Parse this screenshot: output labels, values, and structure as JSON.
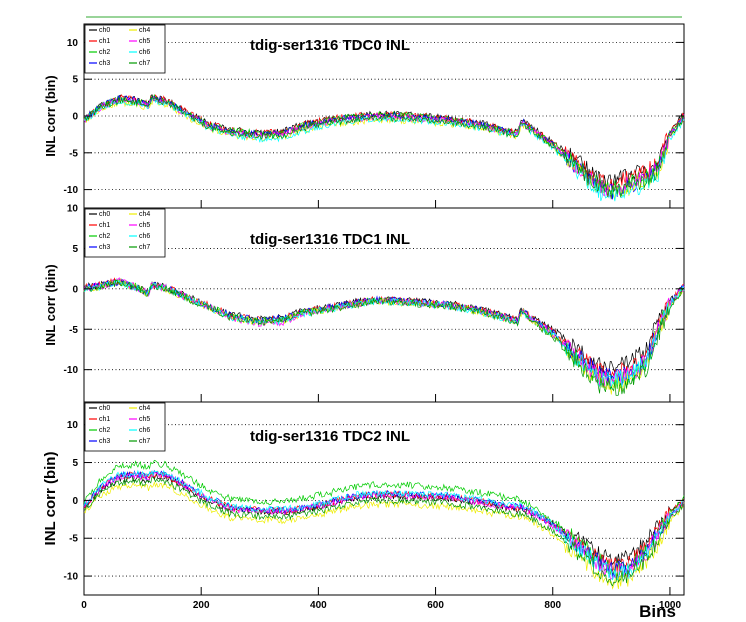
{
  "chart_data": [
    {
      "type": "line",
      "title": "tdig-ser1316 TDC0 INL",
      "ylabel": "INL corr (bin)",
      "xlabel": "",
      "xlim": [
        0,
        1024
      ],
      "ylim": [
        -12.5,
        12.5
      ],
      "yticks": [
        -10,
        -5,
        0,
        5,
        10
      ],
      "xticks": [
        0,
        200,
        400,
        600,
        800,
        1000
      ],
      "grid": "y-dotted",
      "legend": "top-left",
      "legend_entries": [
        "ch0",
        "ch1",
        "ch2",
        "ch3",
        "ch4",
        "ch5",
        "ch6",
        "ch7"
      ],
      "x": [
        0,
        30,
        60,
        90,
        110,
        115,
        140,
        170,
        210,
        250,
        300,
        340,
        370,
        420,
        460,
        500,
        560,
        620,
        680,
        740,
        745,
        750,
        760,
        800,
        840,
        880,
        900,
        930,
        960,
        980,
        1000,
        1024
      ],
      "series": [
        {
          "name": "ch0",
          "color": "#000000",
          "values": [
            -0.5,
            1.5,
            2.5,
            2.2,
            1.6,
            2.6,
            2.2,
            0.8,
            -1.0,
            -1.9,
            -2.2,
            -2.1,
            -1.2,
            -0.4,
            0.0,
            0.3,
            0.1,
            -0.3,
            -1.0,
            -2.3,
            -0.8,
            -0.6,
            -1.3,
            -3.5,
            -6.0,
            -8.5,
            -9.0,
            -8.0,
            -7.3,
            -6.2,
            -2.0,
            0.3
          ]
        },
        {
          "name": "ch1",
          "color": "#ff0000",
          "values": [
            -0.5,
            1.5,
            2.5,
            2.2,
            1.6,
            2.6,
            2.2,
            0.8,
            -1.0,
            -1.9,
            -2.3,
            -2.2,
            -1.3,
            -0.4,
            0.0,
            0.3,
            0.1,
            -0.3,
            -1.1,
            -2.3,
            -0.8,
            -0.7,
            -1.4,
            -3.6,
            -6.3,
            -8.8,
            -9.4,
            -8.3,
            -7.5,
            -6.3,
            -2.0,
            0.2
          ]
        },
        {
          "name": "ch2",
          "color": "#00cc00",
          "values": [
            -0.5,
            1.4,
            2.4,
            2.1,
            1.5,
            2.5,
            2.1,
            0.7,
            -1.1,
            -2.0,
            -2.4,
            -2.3,
            -1.4,
            -0.5,
            -0.1,
            0.2,
            0.0,
            -0.4,
            -1.2,
            -2.4,
            -0.9,
            -0.8,
            -1.5,
            -3.8,
            -6.6,
            -9.4,
            -10.0,
            -9.2,
            -8.2,
            -6.9,
            -2.4,
            0.0
          ]
        },
        {
          "name": "ch3",
          "color": "#0000ff",
          "values": [
            -0.6,
            1.5,
            2.4,
            2.1,
            1.5,
            2.4,
            2.0,
            0.6,
            -1.2,
            -2.1,
            -2.5,
            -2.3,
            -1.4,
            -0.6,
            -0.2,
            0.1,
            -0.1,
            -0.5,
            -1.2,
            -2.5,
            -1.0,
            -0.9,
            -1.6,
            -3.9,
            -6.8,
            -9.6,
            -10.3,
            -9.5,
            -8.5,
            -7.1,
            -2.5,
            -0.1
          ]
        },
        {
          "name": "ch4",
          "color": "#eeee00",
          "values": [
            -0.8,
            1.0,
            1.8,
            1.6,
            1.1,
            2.0,
            1.6,
            0.2,
            -1.6,
            -2.6,
            -3.0,
            -2.9,
            -2.0,
            -1.2,
            -0.8,
            -0.5,
            -0.7,
            -1.0,
            -1.6,
            -2.8,
            -1.4,
            -1.3,
            -1.9,
            -4.2,
            -7.1,
            -9.9,
            -10.6,
            -9.9,
            -9.0,
            -7.6,
            -3.0,
            -0.5
          ]
        },
        {
          "name": "ch5",
          "color": "#ff00ff",
          "values": [
            -0.6,
            1.3,
            2.2,
            2.0,
            1.4,
            2.3,
            1.9,
            0.5,
            -1.3,
            -2.3,
            -2.7,
            -2.5,
            -1.6,
            -0.8,
            -0.4,
            -0.1,
            -0.3,
            -0.7,
            -1.4,
            -2.6,
            -1.1,
            -1.0,
            -1.7,
            -4.0,
            -6.9,
            -9.7,
            -10.3,
            -9.3,
            -8.4,
            -7.0,
            -2.6,
            -0.2
          ]
        },
        {
          "name": "ch6",
          "color": "#00ffff",
          "values": [
            -0.7,
            1.2,
            2.0,
            1.8,
            1.3,
            2.2,
            1.8,
            0.4,
            -1.5,
            -2.5,
            -3.2,
            -3.0,
            -2.1,
            -1.1,
            -0.7,
            -0.4,
            -0.5,
            -0.9,
            -1.6,
            -2.8,
            -1.3,
            -1.2,
            -1.9,
            -4.3,
            -7.3,
            -10.4,
            -11.0,
            -10.2,
            -9.2,
            -7.8,
            -3.2,
            -0.6
          ]
        },
        {
          "name": "ch7",
          "color": "#009900",
          "values": [
            -0.6,
            1.3,
            2.1,
            1.9,
            1.4,
            2.3,
            1.9,
            0.5,
            -1.4,
            -2.3,
            -2.7,
            -2.6,
            -1.7,
            -0.9,
            -0.5,
            -0.2,
            -0.4,
            -0.8,
            -1.5,
            -2.7,
            -1.2,
            -1.1,
            -1.8,
            -4.1,
            -7.0,
            -9.8,
            -10.4,
            -9.6,
            -8.7,
            -7.3,
            -2.8,
            -0.3
          ]
        }
      ]
    },
    {
      "type": "line",
      "title": "tdig-ser1316 TDC1 INL",
      "ylabel": "INL corr (bin)",
      "xlabel": "",
      "xlim": [
        0,
        1024
      ],
      "ylim": [
        -14,
        10
      ],
      "yticks": [
        -10,
        -5,
        0,
        5,
        10
      ],
      "xticks": [
        0,
        200,
        400,
        600,
        800,
        1000
      ],
      "grid": "y-dotted",
      "legend": "top-left",
      "legend_entries": [
        "ch0",
        "ch1",
        "ch2",
        "ch3",
        "ch4",
        "ch5",
        "ch6",
        "ch7"
      ],
      "x": [
        0,
        30,
        60,
        90,
        110,
        115,
        140,
        170,
        210,
        250,
        300,
        340,
        370,
        420,
        460,
        500,
        560,
        620,
        680,
        740,
        745,
        750,
        760,
        800,
        840,
        880,
        900,
        930,
        960,
        980,
        1000,
        1024
      ],
      "series": [
        {
          "name": "ch0",
          "color": "#000000",
          "values": [
            0.2,
            0.5,
            1.0,
            0.3,
            -0.5,
            0.6,
            0.2,
            -0.8,
            -2.0,
            -3.2,
            -3.8,
            -3.6,
            -2.8,
            -2.2,
            -1.7,
            -1.2,
            -1.5,
            -1.8,
            -2.6,
            -3.8,
            -2.7,
            -2.6,
            -3.4,
            -5.0,
            -7.5,
            -9.5,
            -9.8,
            -9.3,
            -7.5,
            -4.0,
            -1.5,
            0.4
          ]
        },
        {
          "name": "ch1",
          "color": "#ff0000",
          "values": [
            0.2,
            0.5,
            1.0,
            0.3,
            -0.5,
            0.6,
            0.2,
            -0.8,
            -2.0,
            -3.3,
            -3.9,
            -3.7,
            -2.9,
            -2.3,
            -1.8,
            -1.3,
            -1.6,
            -1.9,
            -2.7,
            -3.9,
            -2.8,
            -2.7,
            -3.5,
            -5.3,
            -8.0,
            -10.3,
            -10.6,
            -10.0,
            -8.3,
            -4.6,
            -1.7,
            0.3
          ]
        },
        {
          "name": "ch2",
          "color": "#00cc00",
          "values": [
            0.1,
            0.4,
            0.9,
            0.2,
            -0.6,
            0.5,
            0.1,
            -0.9,
            -2.1,
            -3.4,
            -4.0,
            -3.8,
            -3.0,
            -2.4,
            -1.9,
            -1.4,
            -1.7,
            -2.0,
            -2.8,
            -4.0,
            -2.9,
            -2.8,
            -3.6,
            -5.6,
            -8.6,
            -11.2,
            -11.6,
            -11.0,
            -9.0,
            -5.0,
            -1.9,
            0.2
          ]
        },
        {
          "name": "ch3",
          "color": "#0000ff",
          "values": [
            0.1,
            0.4,
            0.9,
            0.2,
            -0.6,
            0.5,
            0.1,
            -0.9,
            -2.1,
            -3.3,
            -3.9,
            -3.7,
            -2.9,
            -2.3,
            -1.8,
            -1.3,
            -1.6,
            -1.9,
            -2.7,
            -3.9,
            -2.8,
            -2.7,
            -3.5,
            -5.4,
            -8.2,
            -10.6,
            -11.0,
            -10.3,
            -8.6,
            -4.7,
            -1.8,
            0.3
          ]
        },
        {
          "name": "ch4",
          "color": "#eeee00",
          "values": [
            0.0,
            0.3,
            0.8,
            0.1,
            -0.7,
            0.4,
            0.0,
            -1.0,
            -2.2,
            -3.5,
            -4.1,
            -3.9,
            -3.1,
            -2.5,
            -2.0,
            -1.5,
            -1.8,
            -2.1,
            -2.9,
            -4.1,
            -3.0,
            -2.9,
            -3.7,
            -5.7,
            -8.8,
            -11.5,
            -12.0,
            -11.3,
            -9.4,
            -5.3,
            -2.0,
            0.1
          ]
        },
        {
          "name": "ch5",
          "color": "#ff00ff",
          "values": [
            0.1,
            0.4,
            0.9,
            0.2,
            -0.6,
            0.5,
            0.1,
            -0.9,
            -2.1,
            -3.6,
            -4.3,
            -4.1,
            -3.1,
            -2.4,
            -1.9,
            -1.4,
            -1.7,
            -2.0,
            -2.8,
            -4.0,
            -2.9,
            -2.8,
            -3.6,
            -5.5,
            -8.4,
            -10.9,
            -11.3,
            -10.7,
            -8.9,
            -4.9,
            -1.9,
            0.2
          ]
        },
        {
          "name": "ch6",
          "color": "#00ffff",
          "values": [
            0.0,
            0.3,
            0.8,
            0.1,
            -0.7,
            0.4,
            0.0,
            -1.0,
            -2.2,
            -3.5,
            -4.1,
            -3.9,
            -3.1,
            -2.5,
            -2.0,
            -1.5,
            -1.8,
            -2.1,
            -2.9,
            -4.1,
            -3.0,
            -2.9,
            -3.7,
            -5.6,
            -8.5,
            -11.0,
            -11.5,
            -10.8,
            -9.0,
            -5.0,
            -1.9,
            0.1
          ]
        },
        {
          "name": "ch7",
          "color": "#009900",
          "values": [
            0.0,
            0.3,
            0.8,
            0.1,
            -0.7,
            0.4,
            0.0,
            -1.0,
            -2.2,
            -3.5,
            -4.1,
            -3.9,
            -3.1,
            -2.5,
            -2.0,
            -1.5,
            -1.8,
            -2.1,
            -2.9,
            -4.1,
            -3.0,
            -2.9,
            -3.7,
            -5.9,
            -9.0,
            -11.9,
            -12.4,
            -11.8,
            -9.8,
            -5.6,
            -2.1,
            0.0
          ]
        }
      ]
    },
    {
      "type": "line",
      "title": "tdig-ser1316 TDC2 INL",
      "ylabel": "INL corr (bin)",
      "xlabel": "Bins",
      "xlim": [
        0,
        1024
      ],
      "ylim": [
        -12.5,
        13
      ],
      "yticks": [
        -10,
        -5,
        0,
        5,
        10
      ],
      "xticks": [
        0,
        200,
        400,
        600,
        800,
        1000
      ],
      "grid": "y-dotted",
      "legend": "top-left",
      "legend_entries": [
        "ch0",
        "ch1",
        "ch2",
        "ch3",
        "ch4",
        "ch5",
        "ch6",
        "ch7"
      ],
      "x": [
        0,
        30,
        60,
        90,
        110,
        115,
        140,
        170,
        210,
        250,
        300,
        340,
        370,
        420,
        460,
        500,
        560,
        620,
        680,
        740,
        745,
        750,
        760,
        800,
        840,
        880,
        900,
        930,
        960,
        980,
        1000,
        1024
      ],
      "series": [
        {
          "name": "ch0",
          "color": "#000000",
          "values": [
            -1.0,
            1.5,
            2.8,
            3.0,
            2.6,
            3.2,
            3.0,
            1.8,
            0.0,
            -1.2,
            -1.5,
            -1.6,
            -1.3,
            -0.5,
            0.3,
            0.6,
            0.5,
            0.3,
            -0.4,
            -1.2,
            -1.0,
            -1.2,
            -1.5,
            -3.0,
            -5.0,
            -7.0,
            -7.8,
            -7.5,
            -5.5,
            -3.5,
            -1.5,
            0.0
          ]
        },
        {
          "name": "ch1",
          "color": "#ff0000",
          "values": [
            -0.8,
            1.8,
            3.2,
            3.4,
            3.0,
            3.5,
            3.3,
            2.1,
            0.3,
            -1.0,
            -1.3,
            -1.4,
            -1.1,
            -0.3,
            0.5,
            0.8,
            0.7,
            0.5,
            -0.2,
            -1.0,
            -0.8,
            -1.0,
            -1.4,
            -3.1,
            -5.4,
            -7.7,
            -8.6,
            -8.3,
            -6.1,
            -3.9,
            -1.7,
            -0.1
          ]
        },
        {
          "name": "ch2",
          "color": "#00cc00",
          "values": [
            -0.3,
            2.8,
            4.5,
            4.8,
            4.4,
            4.9,
            4.7,
            3.4,
            1.5,
            0.2,
            -0.1,
            -0.2,
            0.2,
            1.0,
            1.8,
            2.1,
            2.0,
            1.7,
            1.0,
            0.1,
            0.0,
            -0.2,
            -0.6,
            -2.6,
            -5.2,
            -7.9,
            -9.0,
            -8.8,
            -6.5,
            -4.2,
            -1.8,
            0.2
          ]
        },
        {
          "name": "ch3",
          "color": "#0000ff",
          "values": [
            -0.8,
            1.9,
            3.3,
            3.5,
            3.1,
            3.6,
            3.4,
            2.2,
            0.4,
            -0.9,
            -1.2,
            -1.3,
            -1.0,
            -0.2,
            0.6,
            0.9,
            0.8,
            0.6,
            -0.1,
            -0.9,
            -0.7,
            -0.9,
            -1.3,
            -3.2,
            -5.7,
            -8.2,
            -9.2,
            -8.9,
            -6.6,
            -4.3,
            -1.9,
            -0.2
          ]
        },
        {
          "name": "ch4",
          "color": "#eeee00",
          "values": [
            -1.5,
            0.8,
            1.8,
            2.0,
            1.6,
            2.1,
            1.9,
            0.8,
            -1.0,
            -2.3,
            -2.6,
            -2.7,
            -2.4,
            -1.6,
            -0.8,
            -0.5,
            -0.6,
            -0.8,
            -1.5,
            -2.2,
            -2.0,
            -2.2,
            -2.6,
            -4.5,
            -7.1,
            -9.8,
            -10.8,
            -10.5,
            -8.2,
            -5.7,
            -2.8,
            -0.6
          ]
        },
        {
          "name": "ch5",
          "color": "#ff00ff",
          "values": [
            -0.9,
            1.7,
            3.1,
            3.3,
            2.9,
            3.4,
            3.2,
            2.0,
            0.2,
            -1.1,
            -1.4,
            -1.5,
            -1.2,
            -0.4,
            0.4,
            0.7,
            0.6,
            0.4,
            -0.3,
            -1.1,
            -0.9,
            -1.1,
            -1.5,
            -3.3,
            -5.8,
            -8.4,
            -9.4,
            -9.1,
            -6.8,
            -4.5,
            -2.0,
            -0.3
          ]
        },
        {
          "name": "ch6",
          "color": "#00ffff",
          "values": [
            -0.7,
            2.0,
            3.4,
            3.6,
            3.2,
            3.7,
            3.5,
            2.3,
            0.5,
            -0.8,
            -1.1,
            -1.2,
            -0.9,
            -0.1,
            0.7,
            1.0,
            0.9,
            0.7,
            0.0,
            -0.8,
            -0.6,
            -0.8,
            -1.2,
            -3.2,
            -5.8,
            -8.5,
            -9.6,
            -9.3,
            -7.0,
            -4.6,
            -2.1,
            -0.3
          ]
        },
        {
          "name": "ch7",
          "color": "#009900",
          "values": [
            -1.2,
            1.2,
            2.4,
            2.6,
            2.2,
            2.7,
            2.5,
            1.3,
            -0.5,
            -1.8,
            -2.1,
            -2.2,
            -1.9,
            -1.1,
            -0.3,
            0.0,
            -0.1,
            -0.3,
            -1.0,
            -1.8,
            -1.6,
            -1.8,
            -2.2,
            -4.1,
            -6.7,
            -9.3,
            -10.3,
            -10.0,
            -7.7,
            -5.2,
            -2.5,
            -0.5
          ]
        }
      ]
    }
  ]
}
